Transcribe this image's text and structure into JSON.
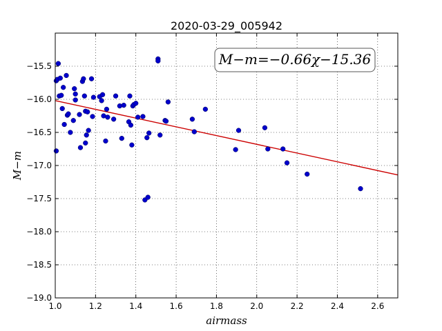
{
  "chart_data": {
    "type": "scatter",
    "title": "2020-03-29_005942",
    "xlabel": "airmass",
    "ylabel": "M−m",
    "xlim": [
      1.0,
      2.7
    ],
    "ylim": [
      -19.0,
      -15.0
    ],
    "y_inverted": true,
    "grid": true,
    "x_ticks": [
      1.0,
      1.2,
      1.4,
      1.6,
      1.8,
      2.0,
      2.2,
      2.4,
      2.6
    ],
    "x_tick_labels": [
      "1.0",
      "1.2",
      "1.4",
      "1.6",
      "1.8",
      "2.0",
      "2.2",
      "2.4",
      "2.6"
    ],
    "y_ticks": [
      -15.5,
      -16.0,
      -16.5,
      -17.0,
      -17.5,
      -18.0,
      -18.5,
      -19.0
    ],
    "y_tick_labels": [
      "−15.5",
      "−16.0",
      "−16.5",
      "−17.0",
      "−17.5",
      "−18.0",
      "−18.5",
      "−19.0"
    ],
    "annotation": "M−m=−0.66χ−15.36",
    "fit_line": {
      "slope": -0.66,
      "intercept": -15.36,
      "color": "#cc0000"
    },
    "point_color": "#0000cc",
    "points": [
      [
        1.005,
        -15.72
      ],
      [
        1.01,
        -15.7
      ],
      [
        1.015,
        -15.46
      ],
      [
        1.02,
        -15.95
      ],
      [
        1.025,
        -15.68
      ],
      [
        1.005,
        -16.78
      ],
      [
        1.03,
        -15.94
      ],
      [
        1.035,
        -16.14
      ],
      [
        1.04,
        -15.82
      ],
      [
        1.045,
        -16.38
      ],
      [
        1.055,
        -15.64
      ],
      [
        1.06,
        -16.24
      ],
      [
        1.065,
        -16.22
      ],
      [
        1.075,
        -16.5
      ],
      [
        1.09,
        -16.32
      ],
      [
        1.095,
        -15.84
      ],
      [
        1.1,
        -15.92
      ],
      [
        1.1,
        -16.01
      ],
      [
        1.12,
        -16.23
      ],
      [
        1.125,
        -16.73
      ],
      [
        1.135,
        -15.73
      ],
      [
        1.14,
        -15.69
      ],
      [
        1.145,
        -15.95
      ],
      [
        1.15,
        -16.18
      ],
      [
        1.15,
        -16.66
      ],
      [
        1.155,
        -16.54
      ],
      [
        1.16,
        -16.19
      ],
      [
        1.165,
        -16.47
      ],
      [
        1.18,
        -15.69
      ],
      [
        1.185,
        -16.26
      ],
      [
        1.19,
        -15.97
      ],
      [
        1.22,
        -15.96
      ],
      [
        1.23,
        -16.02
      ],
      [
        1.235,
        -15.93
      ],
      [
        1.24,
        -16.25
      ],
      [
        1.25,
        -16.63
      ],
      [
        1.255,
        -16.15
      ],
      [
        1.26,
        -16.27
      ],
      [
        1.29,
        -16.3
      ],
      [
        1.3,
        -15.95
      ],
      [
        1.32,
        -16.1
      ],
      [
        1.33,
        -16.59
      ],
      [
        1.34,
        -16.09
      ],
      [
        1.365,
        -16.34
      ],
      [
        1.37,
        -15.95
      ],
      [
        1.375,
        -16.39
      ],
      [
        1.38,
        -16.69
      ],
      [
        1.385,
        -16.1
      ],
      [
        1.39,
        -16.08
      ],
      [
        1.4,
        -16.06
      ],
      [
        1.41,
        -16.27
      ],
      [
        1.435,
        -16.26
      ],
      [
        1.445,
        -17.52
      ],
      [
        1.455,
        -16.58
      ],
      [
        1.46,
        -17.48
      ],
      [
        1.465,
        -16.51
      ],
      [
        1.51,
        -15.39
      ],
      [
        1.51,
        -15.42
      ],
      [
        1.52,
        -16.54
      ],
      [
        1.545,
        -16.32
      ],
      [
        1.55,
        -16.33
      ],
      [
        1.56,
        -16.04
      ],
      [
        1.68,
        -16.3
      ],
      [
        1.69,
        -16.49
      ],
      [
        1.745,
        -16.15
      ],
      [
        1.895,
        -16.76
      ],
      [
        1.91,
        -16.47
      ],
      [
        2.04,
        -16.43
      ],
      [
        2.055,
        -16.75
      ],
      [
        2.13,
        -16.75
      ],
      [
        2.15,
        -16.96
      ],
      [
        2.25,
        -17.13
      ],
      [
        2.515,
        -17.35
      ]
    ]
  }
}
